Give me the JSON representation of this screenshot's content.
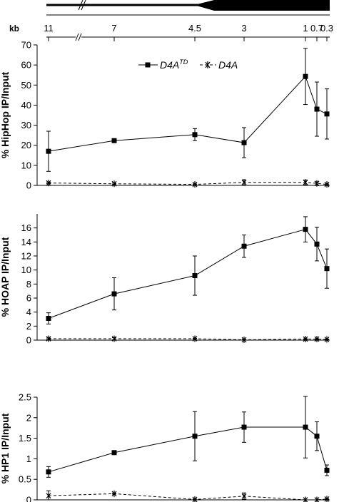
{
  "chart_data": [
    {
      "type": "line",
      "ylabel": "% HipHop IP/Input",
      "ylim": [
        0,
        70
      ],
      "yticks": [
        "0",
        "10",
        "20",
        "30",
        "40",
        "50",
        "60",
        "70"
      ],
      "legend": {
        "placement": "top-center",
        "items": [
          {
            "text": "D4A",
            "sup": "TD",
            "marker": "square",
            "dash": "solid"
          },
          {
            "text": "D4A",
            "sup": "",
            "marker": "star",
            "dash": "dashed"
          }
        ]
      },
      "series": [
        {
          "key": "td",
          "marker": "square",
          "dash": "solid",
          "values": [
            17,
            22.3,
            25.3,
            21.3,
            54.3,
            38,
            35.6
          ],
          "errors": [
            10,
            0.6,
            3,
            7.5,
            14,
            13.5,
            12.5
          ]
        },
        {
          "key": "wt",
          "marker": "star",
          "dash": "dashed",
          "values": [
            1.2,
            0.8,
            0.5,
            1.5,
            1.5,
            1,
            0.5
          ],
          "errors": [
            0.3,
            0.3,
            0.2,
            1.3,
            1.2,
            0.8,
            0.2
          ]
        }
      ]
    },
    {
      "type": "line",
      "ylabel": "% HOAP IP/Input",
      "ylim": [
        0,
        18
      ],
      "yticks": [
        "0",
        "2",
        "4",
        "6",
        "8",
        "10",
        "12",
        "14",
        "16"
      ],
      "series": [
        {
          "key": "td",
          "marker": "square",
          "dash": "solid",
          "values": [
            3.1,
            6.6,
            9.2,
            13.4,
            15.8,
            13.7,
            10.2
          ],
          "errors": [
            0.8,
            2.3,
            2.8,
            1.6,
            1.8,
            2.4,
            2.8
          ]
        },
        {
          "key": "wt",
          "marker": "star",
          "dash": "dashed",
          "values": [
            0.2,
            0.2,
            0.2,
            0.05,
            0.15,
            0.15,
            0.1
          ],
          "errors": [
            0.1,
            0.15,
            0.05,
            0.05,
            0.05,
            0.05,
            0.05
          ]
        }
      ]
    },
    {
      "type": "line",
      "ylabel": "% HP1 IP/Input",
      "ylim": [
        0,
        2.5
      ],
      "yticks": [
        "0",
        "0.5",
        "1",
        "1.5",
        "2",
        "2.5"
      ],
      "series": [
        {
          "key": "td",
          "marker": "square",
          "dash": "solid",
          "values": [
            0.68,
            1.15,
            1.55,
            1.77,
            1.77,
            1.55,
            0.72
          ],
          "errors": [
            0.13,
            0.01,
            0.6,
            0.37,
            0.75,
            0.35,
            0.13
          ]
        },
        {
          "key": "wt",
          "marker": "star",
          "dash": "dashed",
          "values": [
            0.1,
            0.15,
            0.01,
            0.09,
            0,
            0,
            0.02
          ],
          "errors": [
            0.12,
            0.01,
            0.01,
            0.08,
            0,
            0,
            0.01
          ]
        }
      ]
    }
  ],
  "x_axis": {
    "unit_label": "kb",
    "ticks": [
      "11",
      "7",
      "4.5",
      "3",
      "1",
      "0.7",
      "0.3"
    ]
  }
}
